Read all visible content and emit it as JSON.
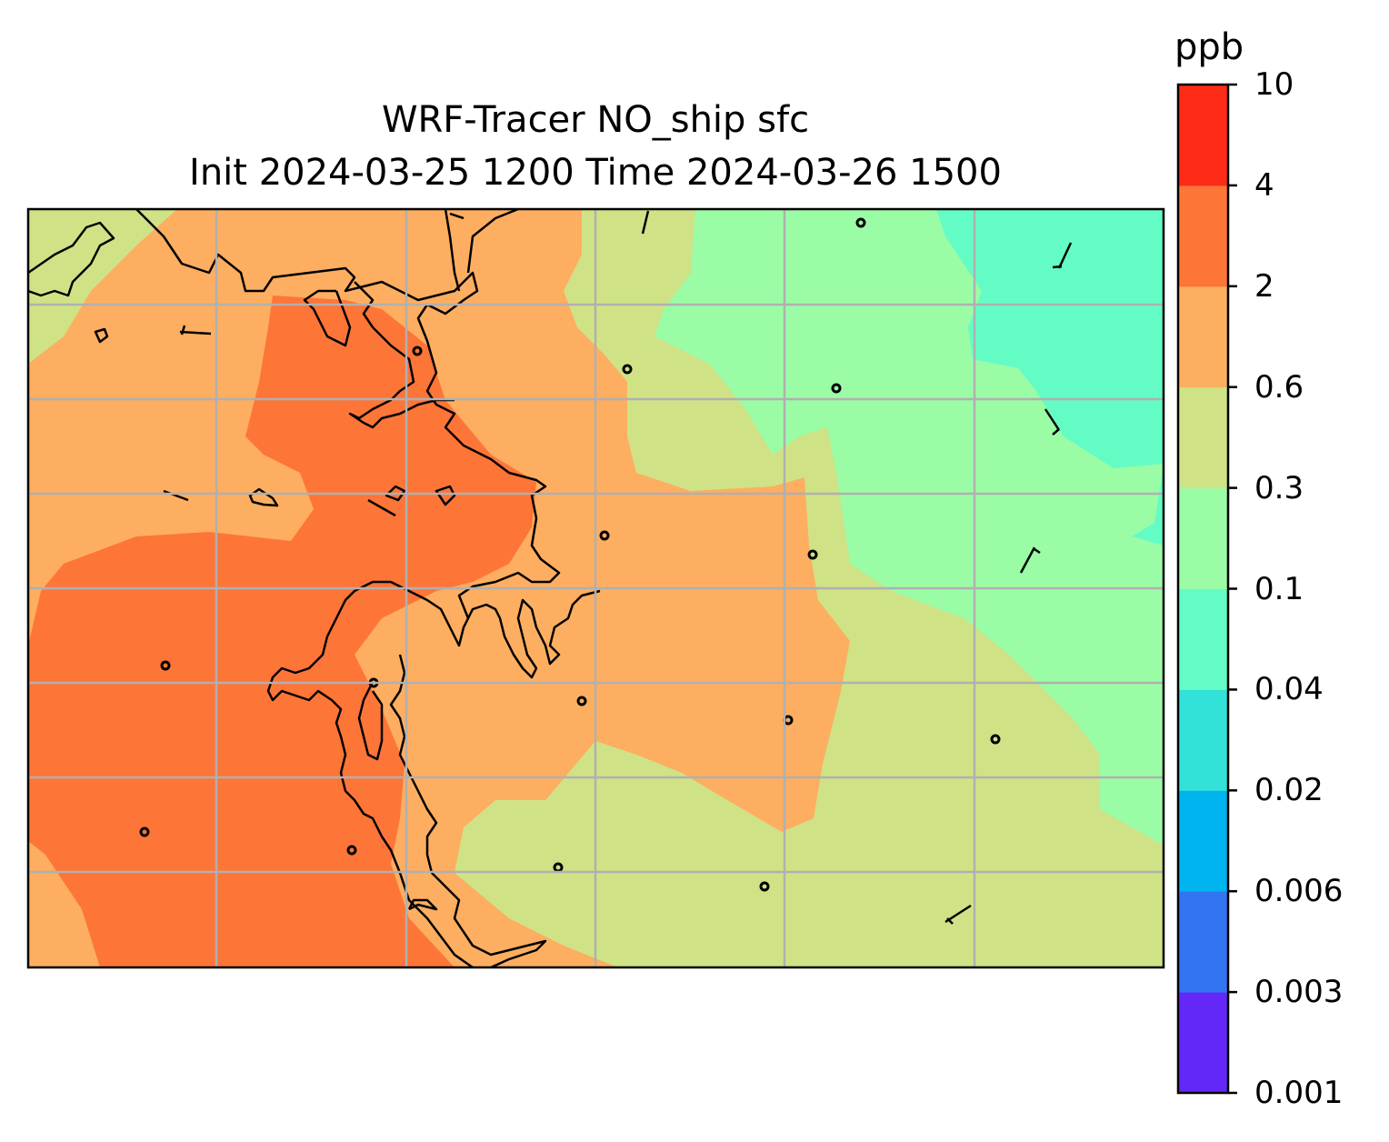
{
  "figure": {
    "title_line1": "WRF-Tracer NO_ship sfc",
    "title_line2": "Init 2024-03-25 1200 Time 2024-03-26 1500"
  },
  "chart_data": {
    "type": "heatmap",
    "title": "WRF-Tracer NO_ship sfc",
    "subtitle": "Init 2024-03-25 1200 Time 2024-03-26 1500",
    "variable": "NO_ship",
    "level": "sfc",
    "units": "ppb",
    "colorbar": {
      "label": "ppb",
      "ticks": [
        "0.001",
        "0.003",
        "0.006",
        "0.02",
        "0.04",
        "0.1",
        "0.3",
        "0.6",
        "2",
        "4",
        "10"
      ],
      "levels": [
        0.001,
        0.003,
        0.006,
        0.02,
        0.04,
        0.1,
        0.3,
        0.6,
        2,
        4,
        10
      ],
      "colors": [
        "#6328f7",
        "#3374f3",
        "#00b4ef",
        "#32e1d7",
        "#64fcc5",
        "#9bfca6",
        "#cfe386",
        "#fdae60",
        "#fe7538",
        "#fe2b17"
      ]
    },
    "grid": true,
    "coastlines": true,
    "map_regions": [
      {
        "band": "0.6-2",
        "level_index": 7
      },
      {
        "band": "2-4",
        "level_index": 8
      },
      {
        "band": "0.3-0.6",
        "level_index": 6
      },
      {
        "band": "0.1-0.3",
        "level_index": 5
      },
      {
        "band": "0.04-0.1",
        "level_index": 4
      }
    ]
  }
}
